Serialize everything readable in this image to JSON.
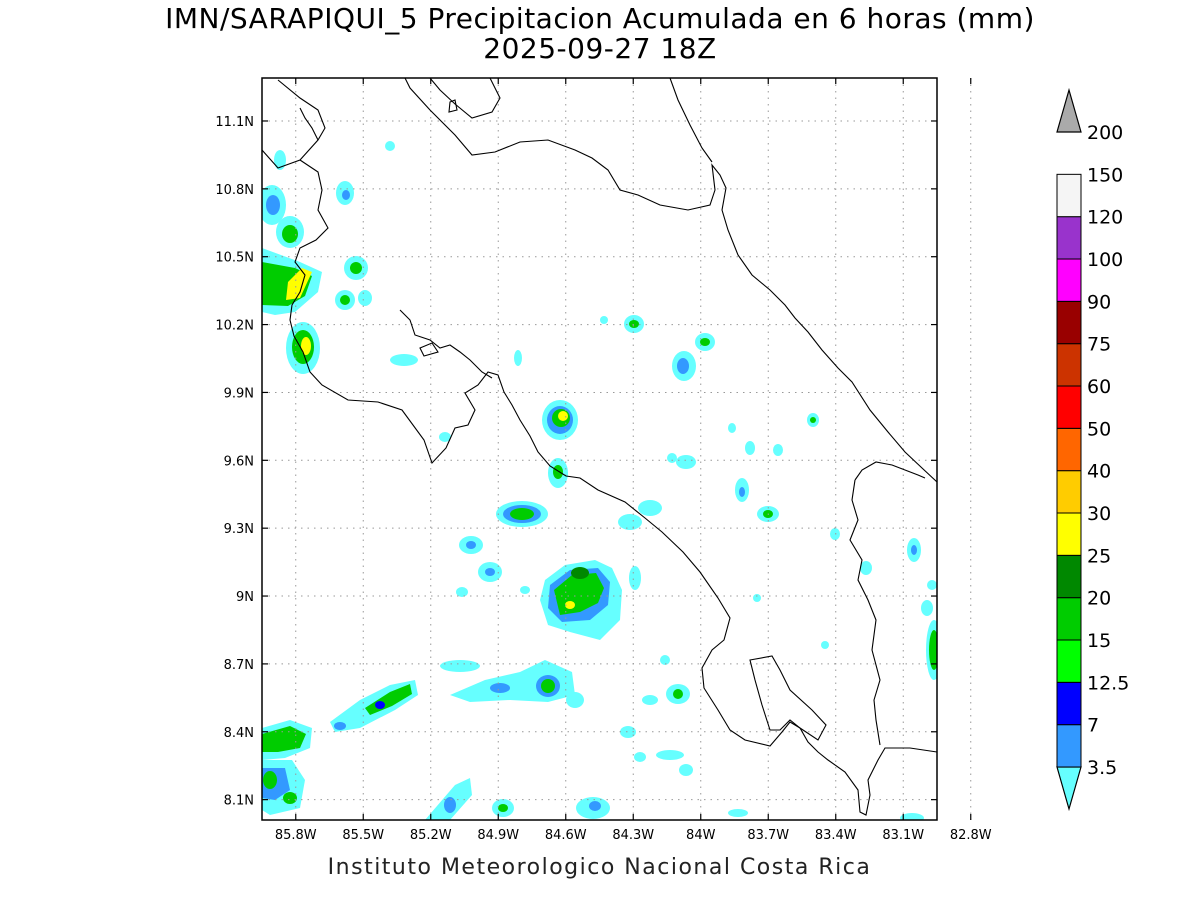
{
  "title": "IMN/SARAPIQUI_5 Precipitacion Acumulada en 6 horas (mm)",
  "subtitle": "2025-09-27 18Z",
  "credit": "Instituto Meteorologico Nacional Costa Rica",
  "map": {
    "lon_range": [
      -85.95,
      -82.95
    ],
    "lat_range": [
      8.01,
      11.29
    ],
    "grid": true,
    "lat_ticks": [
      {
        "value": 11.1,
        "label": "11.1N"
      },
      {
        "value": 10.8,
        "label": "10.8N"
      },
      {
        "value": 10.5,
        "label": "10.5N"
      },
      {
        "value": 10.2,
        "label": "10.2N"
      },
      {
        "value": 9.9,
        "label": "9.9N"
      },
      {
        "value": 9.6,
        "label": "9.6N"
      },
      {
        "value": 9.3,
        "label": "9.3N"
      },
      {
        "value": 9.0,
        "label": "9N"
      },
      {
        "value": 8.7,
        "label": "8.7N"
      },
      {
        "value": 8.4,
        "label": "8.4N"
      },
      {
        "value": 8.1,
        "label": "8.1N"
      }
    ],
    "lon_ticks": [
      {
        "value": -85.8,
        "label": "85.8W"
      },
      {
        "value": -85.5,
        "label": "85.5W"
      },
      {
        "value": -85.2,
        "label": "85.2W"
      },
      {
        "value": -84.9,
        "label": "84.9W"
      },
      {
        "value": -84.6,
        "label": "84.6W"
      },
      {
        "value": -84.3,
        "label": "84.3W"
      },
      {
        "value": -84.0,
        "label": "84W"
      },
      {
        "value": -83.7,
        "label": "83.7W"
      },
      {
        "value": -83.4,
        "label": "83.4W"
      },
      {
        "value": -83.1,
        "label": "83.1W"
      },
      {
        "value": -82.8,
        "label": "82.8W"
      }
    ]
  },
  "colorbar": {
    "levels": [
      {
        "label": "3.5",
        "color": "#66ffff"
      },
      {
        "label": "7",
        "color": "#3399ff"
      },
      {
        "label": "12.5",
        "color": "#0000ff"
      },
      {
        "label": "15",
        "color": "#00ff00"
      },
      {
        "label": "20",
        "color": "#00cc00"
      },
      {
        "label": "25",
        "color": "#008800"
      },
      {
        "label": "30",
        "color": "#ffff00"
      },
      {
        "label": "40",
        "color": "#ffcc00"
      },
      {
        "label": "50",
        "color": "#ff6600"
      },
      {
        "label": "60",
        "color": "#ff0000"
      },
      {
        "label": "75",
        "color": "#cc3300"
      },
      {
        "label": "90",
        "color": "#990000"
      },
      {
        "label": "100",
        "color": "#ff00ff"
      },
      {
        "label": "120",
        "color": "#9933cc"
      },
      {
        "label": "150",
        "color": "#f5f5f5"
      },
      {
        "label": "200",
        "color": "#aaaaaa"
      }
    ]
  }
}
